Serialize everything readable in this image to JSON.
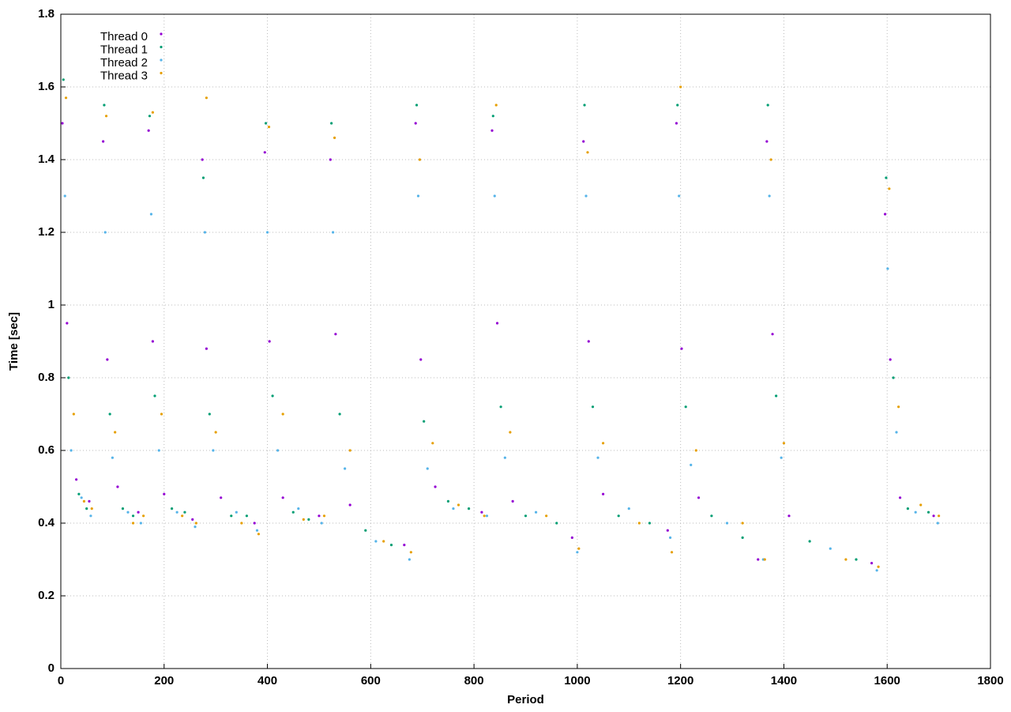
{
  "chart_data": {
    "type": "scatter",
    "xlabel": "Period",
    "ylabel": "Time [sec]",
    "xlim": [
      0,
      1800
    ],
    "ylim": [
      0,
      1.8
    ],
    "xticks": [
      0,
      200,
      400,
      600,
      800,
      1000,
      1200,
      1400,
      1600,
      1800
    ],
    "yticks": [
      0,
      0.2,
      0.4,
      0.6,
      0.8,
      1,
      1.2,
      1.4,
      1.6,
      1.8
    ],
    "grid": true,
    "legend": "upper-left",
    "series": [
      {
        "name": "Thread 0",
        "color": "#9400d3",
        "x": [
          3,
          12,
          30,
          55,
          82,
          90,
          110,
          150,
          170,
          178,
          200,
          255,
          274,
          282,
          310,
          375,
          395,
          404,
          430,
          500,
          522,
          532,
          560,
          665,
          687,
          697,
          725,
          815,
          835,
          845,
          875,
          990,
          1012,
          1022,
          1050,
          1175,
          1192,
          1202,
          1235,
          1350,
          1367,
          1378,
          1410,
          1570,
          1596,
          1606,
          1625,
          1690
        ],
        "values": [
          1.5,
          0.95,
          0.52,
          0.46,
          1.45,
          0.85,
          0.5,
          0.43,
          1.48,
          0.9,
          0.48,
          0.41,
          1.4,
          0.88,
          0.47,
          0.4,
          1.42,
          0.9,
          0.47,
          0.42,
          1.4,
          0.92,
          0.45,
          0.34,
          1.5,
          0.85,
          0.5,
          0.43,
          1.48,
          0.95,
          0.46,
          0.36,
          1.45,
          0.9,
          0.48,
          0.38,
          1.5,
          0.88,
          0.47,
          0.3,
          1.45,
          0.92,
          0.42,
          0.29,
          1.25,
          0.85,
          0.47,
          0.42
        ]
      },
      {
        "name": "Thread 1",
        "color": "#009e73",
        "x": [
          5,
          15,
          35,
          50,
          84,
          95,
          120,
          140,
          172,
          182,
          215,
          240,
          276,
          288,
          330,
          360,
          397,
          410,
          450,
          480,
          524,
          540,
          590,
          640,
          689,
          703,
          750,
          790,
          837,
          852,
          900,
          960,
          1014,
          1030,
          1080,
          1140,
          1194,
          1210,
          1260,
          1320,
          1369,
          1385,
          1450,
          1540,
          1598,
          1612,
          1640,
          1680
        ],
        "values": [
          1.62,
          0.8,
          0.48,
          0.44,
          1.55,
          0.7,
          0.44,
          0.42,
          1.52,
          0.75,
          0.44,
          0.43,
          1.35,
          0.7,
          0.42,
          0.42,
          1.5,
          0.75,
          0.43,
          0.41,
          1.5,
          0.7,
          0.38,
          0.34,
          1.55,
          0.68,
          0.46,
          0.44,
          1.52,
          0.72,
          0.42,
          0.4,
          1.55,
          0.72,
          0.42,
          0.4,
          1.55,
          0.72,
          0.42,
          0.36,
          1.55,
          0.75,
          0.35,
          0.3,
          1.35,
          0.8,
          0.44,
          0.43
        ]
      },
      {
        "name": "Thread 2",
        "color": "#56b4e9",
        "x": [
          8,
          20,
          40,
          58,
          86,
          100,
          130,
          155,
          175,
          190,
          225,
          260,
          279,
          295,
          340,
          380,
          400,
          420,
          460,
          505,
          527,
          550,
          610,
          675,
          692,
          710,
          760,
          825,
          840,
          860,
          920,
          1000,
          1017,
          1040,
          1100,
          1180,
          1197,
          1220,
          1290,
          1360,
          1372,
          1395,
          1490,
          1580,
          1601,
          1618,
          1655,
          1698
        ],
        "values": [
          1.3,
          0.6,
          0.47,
          0.42,
          1.2,
          0.58,
          0.43,
          0.4,
          1.25,
          0.6,
          0.43,
          0.39,
          1.2,
          0.6,
          0.43,
          0.38,
          1.2,
          0.6,
          0.44,
          0.4,
          1.2,
          0.55,
          0.35,
          0.3,
          1.3,
          0.55,
          0.44,
          0.42,
          1.3,
          0.58,
          0.43,
          0.32,
          1.3,
          0.58,
          0.44,
          0.36,
          1.3,
          0.56,
          0.4,
          0.3,
          1.3,
          0.58,
          0.33,
          0.27,
          1.1,
          0.65,
          0.43,
          0.4
        ]
      },
      {
        "name": "Thread 3",
        "color": "#e69f00",
        "x": [
          10,
          25,
          45,
          60,
          88,
          105,
          140,
          160,
          178,
          195,
          235,
          262,
          282,
          300,
          350,
          383,
          403,
          430,
          470,
          510,
          530,
          560,
          625,
          678,
          695,
          720,
          770,
          820,
          843,
          870,
          940,
          1003,
          1020,
          1050,
          1120,
          1183,
          1200,
          1230,
          1320,
          1363,
          1375,
          1400,
          1520,
          1583,
          1604,
          1622,
          1665,
          1700
        ],
        "values": [
          1.57,
          0.7,
          0.46,
          0.44,
          1.52,
          0.65,
          0.4,
          0.42,
          1.53,
          0.7,
          0.42,
          0.4,
          1.57,
          0.65,
          0.4,
          0.37,
          1.49,
          0.7,
          0.41,
          0.42,
          1.46,
          0.6,
          0.35,
          0.32,
          1.4,
          0.62,
          0.45,
          0.42,
          1.55,
          0.65,
          0.42,
          0.33,
          1.42,
          0.62,
          0.4,
          0.32,
          1.6,
          0.6,
          0.4,
          0.3,
          1.4,
          0.62,
          0.3,
          0.28,
          1.32,
          0.72,
          0.45,
          0.42
        ]
      }
    ]
  }
}
